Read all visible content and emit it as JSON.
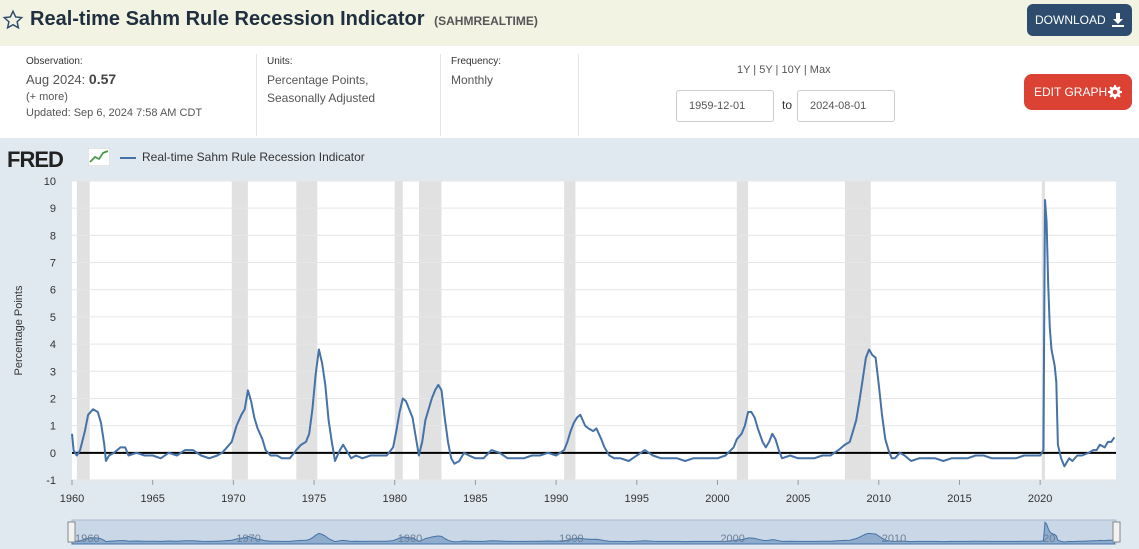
{
  "header": {
    "title": "Real-time Sahm Rule Recession Indicator",
    "series_id": "(SAHMREALTIME)",
    "download_label": "DOWNLOAD",
    "star_icon": "star-icon",
    "download_icon": "download-icon"
  },
  "meta": {
    "observation_label": "Observation:",
    "observation_period": "Aug 2024:",
    "observation_value": "0.57",
    "more_link": "(+ more)",
    "updated": "Updated: Sep 6, 2024 7:58 AM CDT",
    "units_label": "Units:",
    "units_line1": "Percentage Points,",
    "units_line2": "Seasonally Adjusted",
    "frequency_label": "Frequency:",
    "frequency_value": "Monthly"
  },
  "controls": {
    "range_links": "1Y | 5Y | 10Y | Max",
    "start_date": "1959-12-01",
    "to_label": "to",
    "end_date": "2024-08-01",
    "edit_label": "EDIT GRAPH",
    "edit_icon": "gear-icon"
  },
  "colors": {
    "line": "#4572a7",
    "recession_band": "#e1e1e1",
    "edit_button": "#dc4233",
    "download_button": "#2e4d6e"
  },
  "chart_data": {
    "type": "line",
    "logo": "FRED",
    "ylabel": "Percentage Points",
    "xlim": [
      1960,
      2024.7
    ],
    "ylim": [
      -1,
      10
    ],
    "yticks": [
      -1,
      0,
      1,
      2,
      3,
      4,
      5,
      6,
      7,
      8,
      9,
      10
    ],
    "xticks": [
      1960,
      1965,
      1970,
      1975,
      1980,
      1985,
      1990,
      1995,
      2000,
      2005,
      2010,
      2015,
      2020
    ],
    "grid": "horizontal",
    "zero_line": true,
    "recessions": [
      [
        1960.3,
        1961.1
      ],
      [
        1969.9,
        1970.9
      ],
      [
        1973.9,
        1975.2
      ],
      [
        1980.0,
        1980.5
      ],
      [
        1981.5,
        1982.9
      ],
      [
        1990.5,
        1991.2
      ],
      [
        2001.2,
        2001.9
      ],
      [
        2007.9,
        2009.5
      ],
      [
        2020.1,
        2020.3
      ]
    ],
    "series": [
      {
        "name": "Real-time Sahm Rule Recession Indicator",
        "points": [
          [
            1960.0,
            0.7
          ],
          [
            1960.1,
            0.1
          ],
          [
            1960.3,
            -0.1
          ],
          [
            1960.5,
            0.1
          ],
          [
            1960.8,
            0.8
          ],
          [
            1961.0,
            1.4
          ],
          [
            1961.3,
            1.6
          ],
          [
            1961.6,
            1.5
          ],
          [
            1961.8,
            1.1
          ],
          [
            1962.0,
            0.3
          ],
          [
            1962.1,
            -0.3
          ],
          [
            1962.3,
            -0.1
          ],
          [
            1962.6,
            0.0
          ],
          [
            1962.8,
            0.1
          ],
          [
            1963.0,
            0.2
          ],
          [
            1963.3,
            0.2
          ],
          [
            1963.5,
            -0.1
          ],
          [
            1964.0,
            0.0
          ],
          [
            1964.5,
            -0.1
          ],
          [
            1965.0,
            -0.1
          ],
          [
            1965.5,
            -0.2
          ],
          [
            1966.0,
            0.0
          ],
          [
            1966.5,
            -0.1
          ],
          [
            1967.0,
            0.1
          ],
          [
            1967.5,
            0.1
          ],
          [
            1968.0,
            -0.1
          ],
          [
            1968.5,
            -0.2
          ],
          [
            1969.0,
            -0.1
          ],
          [
            1969.3,
            0.0
          ],
          [
            1969.6,
            0.2
          ],
          [
            1969.9,
            0.4
          ],
          [
            1970.2,
            1.0
          ],
          [
            1970.5,
            1.4
          ],
          [
            1970.7,
            1.6
          ],
          [
            1970.9,
            2.3
          ],
          [
            1971.1,
            1.9
          ],
          [
            1971.3,
            1.3
          ],
          [
            1971.5,
            0.9
          ],
          [
            1971.8,
            0.5
          ],
          [
            1972.0,
            0.1
          ],
          [
            1972.3,
            -0.1
          ],
          [
            1972.7,
            -0.1
          ],
          [
            1973.0,
            -0.2
          ],
          [
            1973.5,
            -0.2
          ],
          [
            1973.9,
            0.1
          ],
          [
            1974.2,
            0.3
          ],
          [
            1974.5,
            0.4
          ],
          [
            1974.7,
            0.7
          ],
          [
            1974.9,
            1.6
          ],
          [
            1975.1,
            2.9
          ],
          [
            1975.3,
            3.8
          ],
          [
            1975.5,
            3.3
          ],
          [
            1975.7,
            2.5
          ],
          [
            1975.9,
            1.2
          ],
          [
            1976.1,
            0.4
          ],
          [
            1976.3,
            -0.3
          ],
          [
            1976.6,
            0.1
          ],
          [
            1976.8,
            0.3
          ],
          [
            1977.0,
            0.1
          ],
          [
            1977.3,
            -0.2
          ],
          [
            1977.6,
            -0.1
          ],
          [
            1978.0,
            -0.2
          ],
          [
            1978.5,
            -0.1
          ],
          [
            1979.0,
            -0.1
          ],
          [
            1979.5,
            -0.1
          ],
          [
            1979.9,
            0.2
          ],
          [
            1980.1,
            0.8
          ],
          [
            1980.3,
            1.5
          ],
          [
            1980.5,
            2.0
          ],
          [
            1980.7,
            1.9
          ],
          [
            1980.9,
            1.6
          ],
          [
            1981.1,
            1.3
          ],
          [
            1981.3,
            0.6
          ],
          [
            1981.5,
            -0.1
          ],
          [
            1981.7,
            0.4
          ],
          [
            1981.9,
            1.2
          ],
          [
            1982.1,
            1.6
          ],
          [
            1982.3,
            2.0
          ],
          [
            1982.5,
            2.3
          ],
          [
            1982.7,
            2.5
          ],
          [
            1982.9,
            2.3
          ],
          [
            1983.1,
            1.3
          ],
          [
            1983.3,
            0.4
          ],
          [
            1983.5,
            -0.2
          ],
          [
            1983.7,
            -0.4
          ],
          [
            1984.0,
            -0.3
          ],
          [
            1984.3,
            0.0
          ],
          [
            1984.6,
            -0.1
          ],
          [
            1985.0,
            -0.2
          ],
          [
            1985.5,
            -0.2
          ],
          [
            1986.0,
            0.1
          ],
          [
            1986.5,
            0.0
          ],
          [
            1987.0,
            -0.2
          ],
          [
            1987.5,
            -0.2
          ],
          [
            1988.0,
            -0.2
          ],
          [
            1988.5,
            -0.1
          ],
          [
            1989.0,
            -0.1
          ],
          [
            1989.5,
            0.0
          ],
          [
            1990.0,
            -0.1
          ],
          [
            1990.5,
            0.1
          ],
          [
            1990.7,
            0.4
          ],
          [
            1990.9,
            0.8
          ],
          [
            1991.1,
            1.1
          ],
          [
            1991.3,
            1.3
          ],
          [
            1991.5,
            1.4
          ],
          [
            1991.8,
            1.0
          ],
          [
            1992.0,
            0.9
          ],
          [
            1992.3,
            0.8
          ],
          [
            1992.5,
            0.9
          ],
          [
            1992.8,
            0.5
          ],
          [
            1993.0,
            0.2
          ],
          [
            1993.3,
            -0.1
          ],
          [
            1993.6,
            -0.2
          ],
          [
            1994.0,
            -0.2
          ],
          [
            1994.5,
            -0.3
          ],
          [
            1995.0,
            -0.1
          ],
          [
            1995.5,
            0.1
          ],
          [
            1996.0,
            -0.1
          ],
          [
            1996.5,
            -0.2
          ],
          [
            1997.0,
            -0.2
          ],
          [
            1997.5,
            -0.2
          ],
          [
            1998.0,
            -0.3
          ],
          [
            1998.5,
            -0.2
          ],
          [
            1999.0,
            -0.2
          ],
          [
            1999.5,
            -0.2
          ],
          [
            2000.0,
            -0.2
          ],
          [
            2000.5,
            -0.1
          ],
          [
            2001.0,
            0.2
          ],
          [
            2001.2,
            0.5
          ],
          [
            2001.5,
            0.7
          ],
          [
            2001.7,
            1.0
          ],
          [
            2001.9,
            1.5
          ],
          [
            2002.1,
            1.5
          ],
          [
            2002.3,
            1.3
          ],
          [
            2002.5,
            0.9
          ],
          [
            2002.8,
            0.4
          ],
          [
            2003.0,
            0.2
          ],
          [
            2003.2,
            0.4
          ],
          [
            2003.4,
            0.7
          ],
          [
            2003.6,
            0.5
          ],
          [
            2003.8,
            0.1
          ],
          [
            2004.0,
            -0.2
          ],
          [
            2004.5,
            -0.1
          ],
          [
            2005.0,
            -0.2
          ],
          [
            2005.5,
            -0.2
          ],
          [
            2006.0,
            -0.2
          ],
          [
            2006.5,
            -0.1
          ],
          [
            2007.0,
            -0.1
          ],
          [
            2007.5,
            0.1
          ],
          [
            2007.9,
            0.3
          ],
          [
            2008.2,
            0.4
          ],
          [
            2008.4,
            0.8
          ],
          [
            2008.6,
            1.2
          ],
          [
            2008.8,
            1.9
          ],
          [
            2009.0,
            2.7
          ],
          [
            2009.2,
            3.5
          ],
          [
            2009.4,
            3.8
          ],
          [
            2009.6,
            3.6
          ],
          [
            2009.8,
            3.5
          ],
          [
            2010.0,
            2.5
          ],
          [
            2010.2,
            1.4
          ],
          [
            2010.4,
            0.5
          ],
          [
            2010.6,
            0.1
          ],
          [
            2010.8,
            -0.2
          ],
          [
            2011.0,
            -0.2
          ],
          [
            2011.3,
            0.0
          ],
          [
            2011.6,
            -0.1
          ],
          [
            2012.0,
            -0.3
          ],
          [
            2012.5,
            -0.2
          ],
          [
            2013.0,
            -0.2
          ],
          [
            2013.5,
            -0.2
          ],
          [
            2014.0,
            -0.3
          ],
          [
            2014.5,
            -0.2
          ],
          [
            2015.0,
            -0.2
          ],
          [
            2015.5,
            -0.2
          ],
          [
            2016.0,
            -0.1
          ],
          [
            2016.5,
            -0.1
          ],
          [
            2017.0,
            -0.2
          ],
          [
            2017.5,
            -0.2
          ],
          [
            2018.0,
            -0.2
          ],
          [
            2018.5,
            -0.2
          ],
          [
            2019.0,
            -0.1
          ],
          [
            2019.5,
            -0.1
          ],
          [
            2020.0,
            -0.1
          ],
          [
            2020.2,
            0.1
          ],
          [
            2020.3,
            9.3
          ],
          [
            2020.4,
            8.5
          ],
          [
            2020.5,
            6.2
          ],
          [
            2020.6,
            4.6
          ],
          [
            2020.7,
            3.8
          ],
          [
            2020.9,
            3.2
          ],
          [
            2021.0,
            2.6
          ],
          [
            2021.1,
            0.3
          ],
          [
            2021.3,
            -0.2
          ],
          [
            2021.5,
            -0.5
          ],
          [
            2021.8,
            -0.2
          ],
          [
            2022.0,
            -0.3
          ],
          [
            2022.3,
            -0.1
          ],
          [
            2022.6,
            -0.1
          ],
          [
            2023.0,
            0.0
          ],
          [
            2023.3,
            0.1
          ],
          [
            2023.5,
            0.1
          ],
          [
            2023.7,
            0.3
          ],
          [
            2024.0,
            0.2
          ],
          [
            2024.2,
            0.4
          ],
          [
            2024.4,
            0.4
          ],
          [
            2024.6,
            0.57
          ]
        ]
      }
    ],
    "navigator_labels": [
      "1960",
      "1970",
      "1980",
      "1990",
      "2000",
      "2010",
      "20"
    ]
  }
}
